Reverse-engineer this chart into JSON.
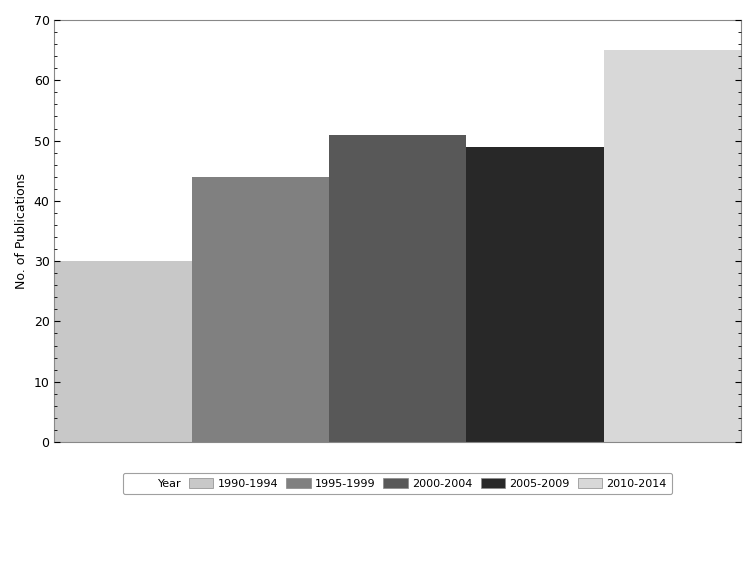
{
  "categories": [
    "1990-1994",
    "1995-1999",
    "2000-2004",
    "2005-2009",
    "2010-2014"
  ],
  "values": [
    30,
    44,
    51,
    49,
    65
  ],
  "colors": [
    "#c8c8c8",
    "#808080",
    "#585858",
    "#282828",
    "#d8d8d8"
  ],
  "ylabel": "No. of Publications",
  "ylim": [
    0,
    70
  ],
  "yticks": [
    0,
    10,
    20,
    30,
    40,
    50,
    60,
    70
  ],
  "legend_label": "Year",
  "background_color": "#ffffff"
}
